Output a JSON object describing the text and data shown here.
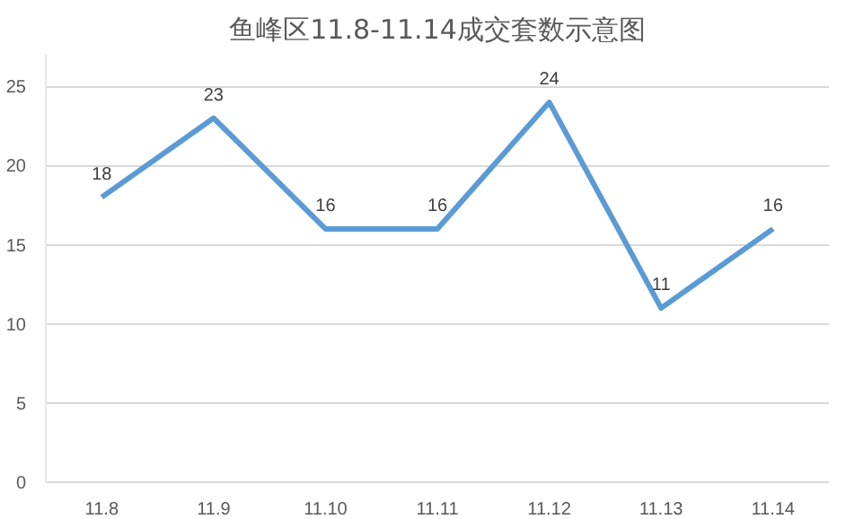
{
  "chart_data": {
    "type": "line",
    "title": "鱼峰区11.8-11.14成交套数示意图",
    "categories": [
      "11.8",
      "11.9",
      "11.10",
      "11.11",
      "11.12",
      "11.13",
      "11.14"
    ],
    "series": [
      {
        "color": "#5b9bd5",
        "values": [
          18,
          23,
          16,
          16,
          24,
          11,
          16
        ]
      }
    ],
    "ylim": [
      0,
      27
    ],
    "yticks": [
      0,
      5,
      10,
      15,
      20,
      25
    ],
    "grid": "y",
    "data_labels": true,
    "marker": "none",
    "line_style": "solid"
  }
}
